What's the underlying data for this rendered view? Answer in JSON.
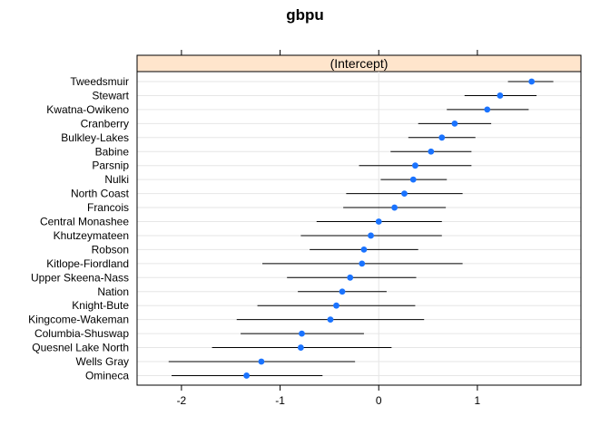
{
  "chart_data": {
    "type": "dotplot",
    "title": "gbpu",
    "panel_label": "(Intercept)",
    "xlim": [
      -2.45,
      2.05
    ],
    "x_ticks": [
      -2,
      -1,
      0,
      1
    ],
    "x_tick_labels": [
      "-2",
      "-1",
      "0",
      "1"
    ],
    "grid": true,
    "colors": {
      "point": "#1a73ff",
      "interval": "#000000",
      "grid": "#e6e6e6",
      "zero_line": "#e6e6e6",
      "strip": "#ffe5cc"
    },
    "categories": [
      "Tweedsmuir",
      "Stewart",
      "Kwatna-Owikeno",
      "Cranberry",
      "Bulkley-Lakes",
      "Babine",
      "Parsnip",
      "Nulki",
      "North Coast",
      "Francois",
      "Central Monashee",
      "Khutzeymateen",
      "Robson",
      "Kitlope-Fiordland",
      "Upper Skeena-Nass",
      "Nation",
      "Knight-Bute",
      "Kingcome-Wakeman",
      "Columbia-Shuswap",
      "Quesnel Lake North",
      "Wells Gray",
      "Omineca"
    ],
    "estimates": [
      1.55,
      1.23,
      1.1,
      0.77,
      0.64,
      0.53,
      0.37,
      0.35,
      0.26,
      0.16,
      0.0,
      -0.08,
      -0.15,
      -0.17,
      -0.29,
      -0.37,
      -0.43,
      -0.49,
      -0.78,
      -0.79,
      -1.19,
      -1.34
    ],
    "lower": [
      1.31,
      0.87,
      0.69,
      0.4,
      0.3,
      0.12,
      -0.2,
      0.02,
      -0.33,
      -0.36,
      -0.63,
      -0.79,
      -0.7,
      -1.18,
      -0.93,
      -0.82,
      -1.23,
      -1.44,
      -1.4,
      -1.69,
      -2.13,
      -2.1
    ],
    "upper": [
      1.77,
      1.6,
      1.52,
      1.14,
      0.98,
      0.94,
      0.94,
      0.69,
      0.85,
      0.68,
      0.64,
      0.64,
      0.4,
      0.85,
      0.38,
      0.08,
      0.37,
      0.46,
      -0.15,
      0.13,
      -0.24,
      -0.57
    ]
  }
}
